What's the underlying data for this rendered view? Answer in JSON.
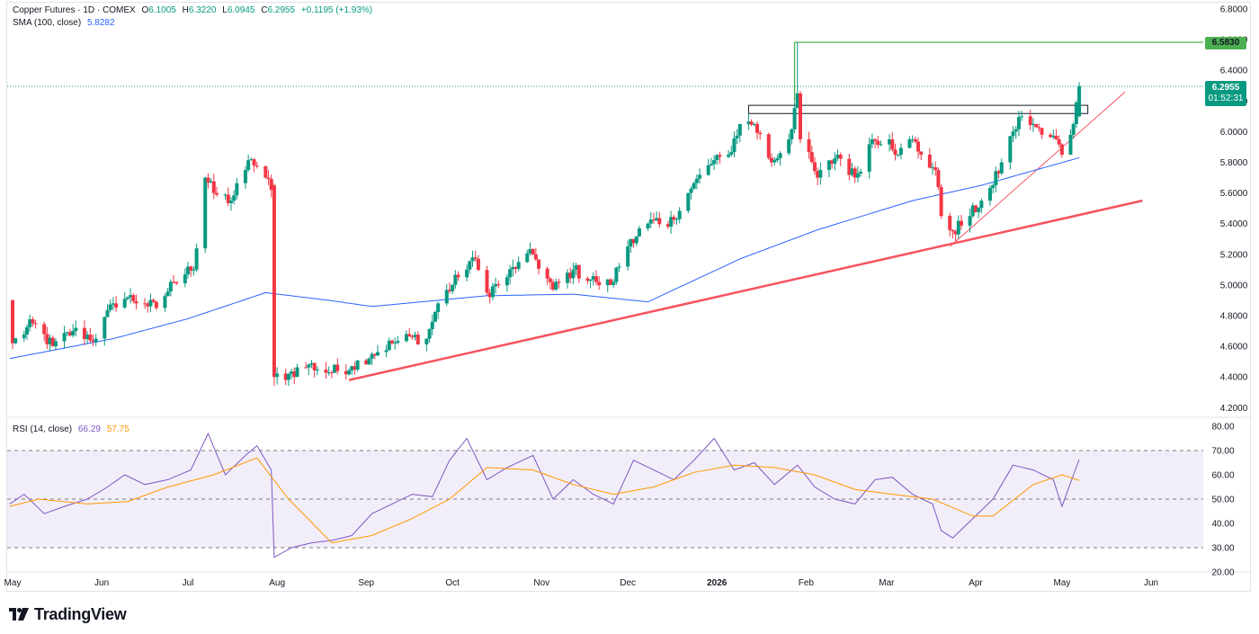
{
  "header": {
    "symbol": "Copper Futures · 1D · COMEX",
    "open_label": "O",
    "open": "6.1005",
    "high_label": "H",
    "high": "6.3220",
    "low_label": "L",
    "low": "6.0945",
    "close_label": "C",
    "close": "6.2955",
    "change": "+0.1195 (+1.93%)"
  },
  "sma_legend": {
    "label": "SMA (100, close)",
    "value": "5.8282"
  },
  "rsi_legend": {
    "label": "RSI (14, close)",
    "rsi_value": "66.29",
    "ma_value": "57.75"
  },
  "price_tags": {
    "resistance": "6.5830",
    "last_price": "6.2955",
    "countdown": "01:52:31"
  },
  "brand": {
    "name": "TradingView"
  },
  "colors": {
    "up": "#089981",
    "down": "#f23645",
    "sma": "#2962ff",
    "rsi": "#7e57c2",
    "rsi_ma": "#ff9800",
    "trendline": "#f7525f",
    "resistance": "#4caf50"
  },
  "chart_data": [
    {
      "type": "candlestick",
      "title": "Copper Futures · 1D · COMEX",
      "y_ticks": [
        "6.8000",
        "6.6000",
        "6.4000",
        "6.2000",
        "6.0000",
        "5.8000",
        "5.6000",
        "5.4000",
        "5.2000",
        "5.0000",
        "4.8000",
        "4.6000",
        "4.4000",
        "4.2000"
      ],
      "x_ticks": [
        "May",
        "Jun",
        "Jul",
        "Aug",
        "Sep",
        "Oct",
        "Nov",
        "Dec",
        "2026",
        "Feb",
        "Mar",
        "Apr",
        "May",
        "Jun"
      ],
      "ylim": [
        4.16,
        6.8
      ],
      "grid": false,
      "anchors": [
        {
          "date": "2025-04-30",
          "close": 4.9
        },
        {
          "date": "2025-05-01",
          "close": 4.62
        },
        {
          "date": "2025-05-08",
          "close": 4.75
        },
        {
          "date": "2025-05-15",
          "close": 4.6
        },
        {
          "date": "2025-05-22",
          "close": 4.7
        },
        {
          "date": "2025-05-30",
          "close": 4.65
        },
        {
          "date": "2025-06-05",
          "close": 4.88
        },
        {
          "date": "2025-06-10",
          "close": 4.92
        },
        {
          "date": "2025-06-16",
          "close": 4.88
        },
        {
          "date": "2025-06-20",
          "close": 4.85
        },
        {
          "date": "2025-06-26",
          "close": 5.02
        },
        {
          "date": "2025-07-01",
          "close": 5.12
        },
        {
          "date": "2025-07-03",
          "close": 5.1
        },
        {
          "date": "2025-07-07",
          "close": 5.7
        },
        {
          "date": "2025-07-10",
          "close": 5.6
        },
        {
          "date": "2025-07-16",
          "close": 5.55
        },
        {
          "date": "2025-07-21",
          "close": 5.75
        },
        {
          "date": "2025-07-23",
          "close": 5.82
        },
        {
          "date": "2025-07-28",
          "close": 5.7
        },
        {
          "date": "2025-07-30",
          "close": 5.62
        },
        {
          "date": "2025-07-31",
          "close": 4.4
        },
        {
          "date": "2025-08-05",
          "close": 4.42
        },
        {
          "date": "2025-08-12",
          "close": 4.48
        },
        {
          "date": "2025-08-19",
          "close": 4.43
        },
        {
          "date": "2025-08-27",
          "close": 4.47
        },
        {
          "date": "2025-09-03",
          "close": 4.55
        },
        {
          "date": "2025-09-10",
          "close": 4.62
        },
        {
          "date": "2025-09-17",
          "close": 4.66
        },
        {
          "date": "2025-09-22",
          "close": 4.65
        },
        {
          "date": "2025-09-26",
          "close": 4.88
        },
        {
          "date": "2025-10-03",
          "close": 5.05
        },
        {
          "date": "2025-10-08",
          "close": 5.18
        },
        {
          "date": "2025-10-13",
          "close": 4.95
        },
        {
          "date": "2025-10-20",
          "close": 5.05
        },
        {
          "date": "2025-10-24",
          "close": 5.15
        },
        {
          "date": "2025-10-29",
          "close": 5.2
        },
        {
          "date": "2025-11-05",
          "close": 4.97
        },
        {
          "date": "2025-11-12",
          "close": 5.1
        },
        {
          "date": "2025-11-20",
          "close": 5.02
        },
        {
          "date": "2025-11-25",
          "close": 5.0
        },
        {
          "date": "2025-12-02",
          "close": 5.3
        },
        {
          "date": "2025-12-08",
          "close": 5.4
        },
        {
          "date": "2025-12-15",
          "close": 5.38
        },
        {
          "date": "2025-12-22",
          "close": 5.6
        },
        {
          "date": "2025-12-29",
          "close": 5.78
        },
        {
          "date": "2026-01-05",
          "close": 5.85
        },
        {
          "date": "2026-01-09",
          "close": 6.05
        },
        {
          "date": "2026-01-14",
          "close": 6.05
        },
        {
          "date": "2026-01-20",
          "close": 5.8
        },
        {
          "date": "2026-01-26",
          "close": 5.95
        },
        {
          "date": "2026-01-29",
          "close": 6.25
        },
        {
          "date": "2026-01-30",
          "close": 5.95
        },
        {
          "date": "2026-02-05",
          "close": 5.7
        },
        {
          "date": "2026-02-12",
          "close": 5.85
        },
        {
          "date": "2026-02-18",
          "close": 5.7
        },
        {
          "date": "2026-02-24",
          "close": 5.95
        },
        {
          "date": "2026-03-02",
          "close": 5.95
        },
        {
          "date": "2026-03-05",
          "close": 5.85
        },
        {
          "date": "2026-03-10",
          "close": 5.95
        },
        {
          "date": "2026-03-13",
          "close": 5.85
        },
        {
          "date": "2026-03-18",
          "close": 5.75
        },
        {
          "date": "2026-03-20",
          "close": 5.45
        },
        {
          "date": "2026-03-24",
          "close": 5.35
        },
        {
          "date": "2026-03-30",
          "close": 5.45
        },
        {
          "date": "2026-04-03",
          "close": 5.55
        },
        {
          "date": "2026-04-07",
          "close": 5.65
        },
        {
          "date": "2026-04-10",
          "close": 5.8
        },
        {
          "date": "2026-04-14",
          "close": 6.0
        },
        {
          "date": "2026-04-17",
          "close": 6.1
        },
        {
          "date": "2026-04-21",
          "close": 6.05
        },
        {
          "date": "2026-04-24",
          "close": 5.98
        },
        {
          "date": "2026-04-29",
          "close": 5.95
        },
        {
          "date": "2026-05-01",
          "close": 5.85
        },
        {
          "date": "2026-05-05",
          "close": 6.05
        },
        {
          "date": "2026-05-06",
          "close": 6.19
        },
        {
          "date": "2026-05-07",
          "close": 6.3
        }
      ],
      "last_ohlc": {
        "open": 6.1005,
        "high": 6.322,
        "low": 6.0945,
        "close": 6.2955
      },
      "sma_100": [
        {
          "date": "2025-04-30",
          "value": 4.52
        },
        {
          "date": "2025-06-05",
          "value": 4.65
        },
        {
          "date": "2025-07-01",
          "value": 4.78
        },
        {
          "date": "2025-07-28",
          "value": 4.95
        },
        {
          "date": "2025-08-19",
          "value": 4.9
        },
        {
          "date": "2025-09-03",
          "value": 4.86
        },
        {
          "date": "2025-10-13",
          "value": 4.93
        },
        {
          "date": "2025-11-12",
          "value": 4.94
        },
        {
          "date": "2025-12-08",
          "value": 4.89
        },
        {
          "date": "2026-01-09",
          "value": 5.17
        },
        {
          "date": "2026-02-05",
          "value": 5.36
        },
        {
          "date": "2026-03-10",
          "value": 5.55
        },
        {
          "date": "2026-04-03",
          "value": 5.65
        },
        {
          "date": "2026-05-07",
          "value": 5.83
        }
      ],
      "annotations": [
        {
          "type": "resistance_line",
          "value": 6.583,
          "from": "2026-01-28",
          "to": "2026-06-01"
        },
        {
          "type": "resistance_zone",
          "low": 6.13,
          "high": 6.16,
          "from": "2026-01-12",
          "to": "2026-05-10"
        },
        {
          "type": "trendline",
          "from": {
            "date": "2025-08-26",
            "value": 4.38
          },
          "to": {
            "date": "2026-05-29",
            "value": 5.55
          }
        },
        {
          "type": "trendline_thin",
          "from": {
            "date": "2026-03-23",
            "value": 5.25
          },
          "to": {
            "date": "2026-05-23",
            "value": 6.26
          }
        }
      ]
    },
    {
      "type": "line",
      "title": "RSI (14, close)",
      "y_ticks": [
        "80.00",
        "70.00",
        "60.00",
        "50.00",
        "40.00",
        "30.00",
        "20.00"
      ],
      "ylim": [
        20,
        80
      ],
      "bands": {
        "upper": 70,
        "middle": 50,
        "lower": 30
      },
      "series": [
        {
          "name": "RSI",
          "values": [
            {
              "date": "2025-04-30",
              "value": 48
            },
            {
              "date": "2025-05-05",
              "value": 52
            },
            {
              "date": "2025-05-12",
              "value": 44
            },
            {
              "date": "2025-05-19",
              "value": 47
            },
            {
              "date": "2025-05-27",
              "value": 50
            },
            {
              "date": "2025-06-03",
              "value": 55
            },
            {
              "date": "2025-06-09",
              "value": 60
            },
            {
              "date": "2025-06-16",
              "value": 56
            },
            {
              "date": "2025-06-24",
              "value": 58
            },
            {
              "date": "2025-07-02",
              "value": 62
            },
            {
              "date": "2025-07-08",
              "value": 77
            },
            {
              "date": "2025-07-14",
              "value": 60
            },
            {
              "date": "2025-07-21",
              "value": 68
            },
            {
              "date": "2025-07-25",
              "value": 72
            },
            {
              "date": "2025-07-30",
              "value": 62
            },
            {
              "date": "2025-07-31",
              "value": 26
            },
            {
              "date": "2025-08-06",
              "value": 30
            },
            {
              "date": "2025-08-13",
              "value": 32
            },
            {
              "date": "2025-08-20",
              "value": 33
            },
            {
              "date": "2025-08-27",
              "value": 35
            },
            {
              "date": "2025-09-03",
              "value": 44
            },
            {
              "date": "2025-09-10",
              "value": 48
            },
            {
              "date": "2025-09-17",
              "value": 52
            },
            {
              "date": "2025-09-24",
              "value": 51
            },
            {
              "date": "2025-09-30",
              "value": 66
            },
            {
              "date": "2025-10-06",
              "value": 75
            },
            {
              "date": "2025-10-13",
              "value": 58
            },
            {
              "date": "2025-10-20",
              "value": 63
            },
            {
              "date": "2025-10-29",
              "value": 68
            },
            {
              "date": "2025-11-05",
              "value": 50
            },
            {
              "date": "2025-11-12",
              "value": 58
            },
            {
              "date": "2025-11-19",
              "value": 52
            },
            {
              "date": "2025-11-26",
              "value": 48
            },
            {
              "date": "2025-12-03",
              "value": 66
            },
            {
              "date": "2025-12-10",
              "value": 62
            },
            {
              "date": "2025-12-17",
              "value": 58
            },
            {
              "date": "2025-12-24",
              "value": 66
            },
            {
              "date": "2025-12-31",
              "value": 75
            },
            {
              "date": "2026-01-07",
              "value": 62
            },
            {
              "date": "2026-01-14",
              "value": 65
            },
            {
              "date": "2026-01-21",
              "value": 56
            },
            {
              "date": "2026-01-29",
              "value": 64
            },
            {
              "date": "2026-02-04",
              "value": 55
            },
            {
              "date": "2026-02-11",
              "value": 50
            },
            {
              "date": "2026-02-18",
              "value": 48
            },
            {
              "date": "2026-02-25",
              "value": 58
            },
            {
              "date": "2026-03-03",
              "value": 59
            },
            {
              "date": "2026-03-10",
              "value": 52
            },
            {
              "date": "2026-03-17",
              "value": 48
            },
            {
              "date": "2026-03-20",
              "value": 37
            },
            {
              "date": "2026-03-24",
              "value": 34
            },
            {
              "date": "2026-03-31",
              "value": 42
            },
            {
              "date": "2026-04-07",
              "value": 50
            },
            {
              "date": "2026-04-14",
              "value": 64
            },
            {
              "date": "2026-04-21",
              "value": 62
            },
            {
              "date": "2026-04-28",
              "value": 58
            },
            {
              "date": "2026-05-01",
              "value": 47
            },
            {
              "date": "2026-05-05",
              "value": 60
            },
            {
              "date": "2026-05-07",
              "value": 66.29
            }
          ]
        },
        {
          "name": "RSI-based MA",
          "values": [
            {
              "date": "2025-04-30",
              "value": 47
            },
            {
              "date": "2025-05-10",
              "value": 50
            },
            {
              "date": "2025-05-27",
              "value": 48
            },
            {
              "date": "2025-06-10",
              "value": 49
            },
            {
              "date": "2025-06-24",
              "value": 55
            },
            {
              "date": "2025-07-10",
              "value": 60
            },
            {
              "date": "2025-07-25",
              "value": 67
            },
            {
              "date": "2025-08-05",
              "value": 50
            },
            {
              "date": "2025-08-20",
              "value": 32
            },
            {
              "date": "2025-09-03",
              "value": 35
            },
            {
              "date": "2025-09-17",
              "value": 42
            },
            {
              "date": "2025-09-30",
              "value": 50
            },
            {
              "date": "2025-10-13",
              "value": 63
            },
            {
              "date": "2025-10-29",
              "value": 62
            },
            {
              "date": "2025-11-12",
              "value": 56
            },
            {
              "date": "2025-11-26",
              "value": 52
            },
            {
              "date": "2025-12-10",
              "value": 55
            },
            {
              "date": "2025-12-24",
              "value": 61
            },
            {
              "date": "2026-01-07",
              "value": 64
            },
            {
              "date": "2026-01-21",
              "value": 63
            },
            {
              "date": "2026-02-04",
              "value": 60
            },
            {
              "date": "2026-02-18",
              "value": 54
            },
            {
              "date": "2026-03-03",
              "value": 52
            },
            {
              "date": "2026-03-17",
              "value": 50
            },
            {
              "date": "2026-03-31",
              "value": 43
            },
            {
              "date": "2026-04-07",
              "value": 43
            },
            {
              "date": "2026-04-21",
              "value": 56
            },
            {
              "date": "2026-05-01",
              "value": 60
            },
            {
              "date": "2026-05-07",
              "value": 57.75
            }
          ]
        }
      ]
    }
  ]
}
